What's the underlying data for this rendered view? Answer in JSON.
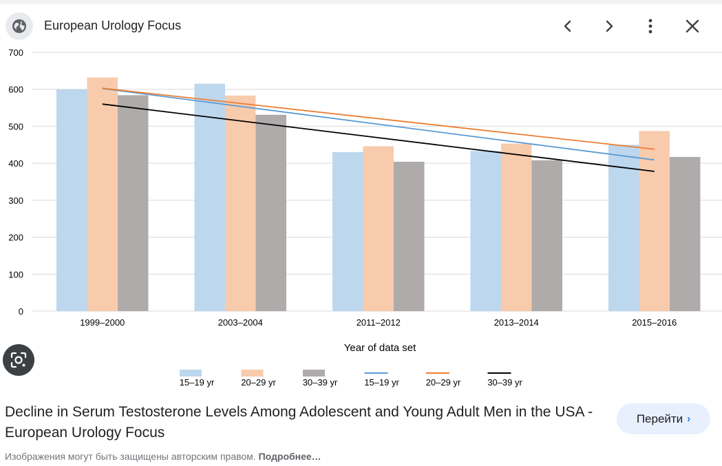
{
  "header": {
    "site_name": "European Urology Focus",
    "globe_icon": "globe-icon",
    "prev_icon": "chevron-left-icon",
    "next_icon": "chevron-right-icon",
    "more_icon": "more-vert-icon",
    "close_icon": "close-icon"
  },
  "chart_data": {
    "type": "bar",
    "title": "",
    "xlabel": "Year of data set",
    "ylabel": "",
    "ylim": [
      0,
      700
    ],
    "yticks": [
      0,
      100,
      200,
      300,
      400,
      500,
      600,
      700
    ],
    "categories": [
      "1999–2000",
      "2003–2004",
      "2011–2012",
      "2013–2014",
      "2015–2016"
    ],
    "series": [
      {
        "name": "15–19 yr",
        "kind": "bar",
        "color": "#bdd7ee",
        "values": [
          600,
          615,
          430,
          433,
          450
        ]
      },
      {
        "name": "20–29 yr",
        "kind": "bar",
        "color": "#f8cbad",
        "values": [
          632,
          583,
          446,
          453,
          487
        ]
      },
      {
        "name": "30–39 yr",
        "kind": "bar",
        "color": "#afabab",
        "values": [
          584,
          531,
          404,
          408,
          417
        ]
      }
    ],
    "trendlines": [
      {
        "name": "15–19 yr",
        "kind": "line",
        "color": "#5b9bd5",
        "start": 602,
        "end": 409
      },
      {
        "name": "20–29 yr",
        "kind": "line",
        "color": "#ed7d31",
        "start": 603,
        "end": 438
      },
      {
        "name": "30–39 yr",
        "kind": "line",
        "color": "#000000",
        "start": 560,
        "end": 378
      }
    ]
  },
  "caption": {
    "title": "Decline in Serum Testosterone Levels Among Adolescent and Young Adult Men in the USA - European Urology Focus",
    "button_label": "Перейти",
    "copyright_text": "Изображения могут быть защищены авторским правом.",
    "more_link": "Подробнее…"
  },
  "lens": {
    "icon": "lens-icon"
  }
}
